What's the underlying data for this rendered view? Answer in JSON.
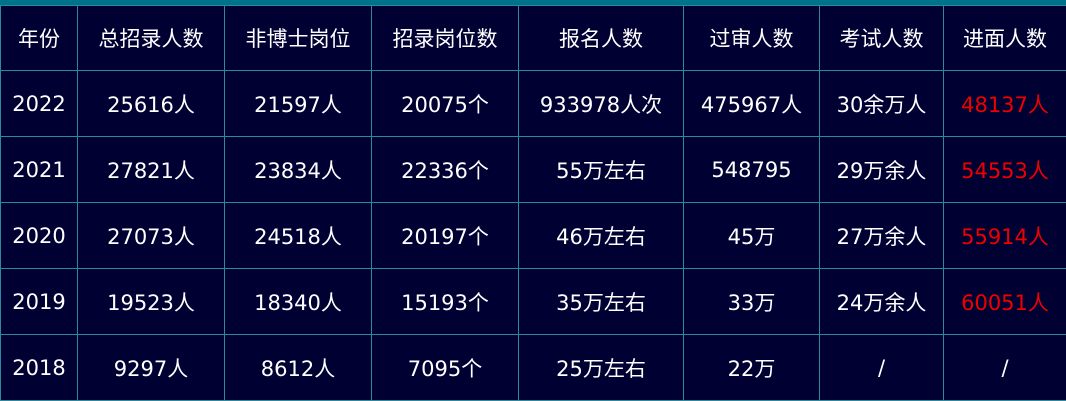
{
  "colors": {
    "background": "#000033",
    "border": "#2a8a9c",
    "top_bar": "#00738c",
    "text": "#ffffff",
    "highlight": "#ee0000"
  },
  "headers": [
    "年份",
    "总招录人数",
    "非博士岗位",
    "招录岗位数",
    "报名人数",
    "过审人数",
    "考试人数",
    "进面人数"
  ],
  "rows": [
    [
      "2022",
      "25616人",
      "21597人",
      "20075个",
      "933978人次",
      "475967人",
      "30余万人",
      "48137人"
    ],
    [
      "2021",
      "27821人",
      "23834人",
      "22336个",
      "55万左右",
      "548795",
      "29万余人",
      "54553人"
    ],
    [
      "2020",
      "27073人",
      "24518人",
      "20197个",
      "46万左右",
      "45万",
      "27万余人",
      "55914人"
    ],
    [
      "2019",
      "19523人",
      "18340人",
      "15193个",
      "35万左右",
      "33万",
      "24万余人",
      "60051人"
    ],
    [
      "2018",
      "9297人",
      "8612人",
      "7095个",
      "25万左右",
      "22万",
      "/",
      "/"
    ]
  ]
}
